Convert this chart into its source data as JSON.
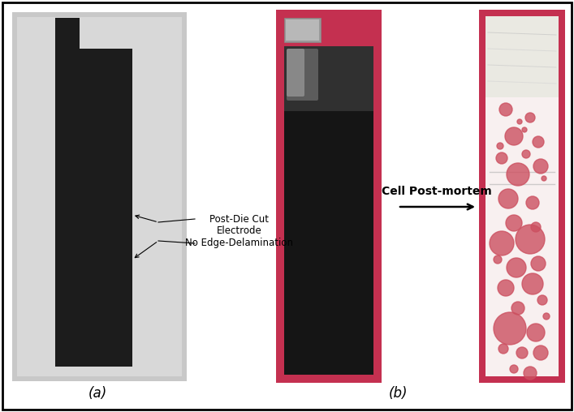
{
  "fig_width": 7.07,
  "fig_height": 5.08,
  "dpi": 100,
  "bg_color": "#ffffff",
  "border_color": "#000000",
  "label_a": "(a)",
  "label_b": "(b)",
  "annotation_lines": [
    "Post-Die Cut",
    "Electrode",
    "No Edge-Delamination"
  ],
  "arrow_label": "Cell Post-mortem",
  "panel_a_bg": "#c8c8c8",
  "electrode_color": "#1c1c1c",
  "b1_border_color": "#c43050",
  "b1_electrode_color": "#151515",
  "b1_tab_color": "#b0b0b0",
  "b1_gloss_color": "#404040",
  "b2_border_color": "#c43050",
  "b2_bg_color": "#f5e8e8",
  "b2_inner_color": "#f8f4f4",
  "b2_top_color": "#e8e8e8",
  "spot_color": "#cc5060"
}
